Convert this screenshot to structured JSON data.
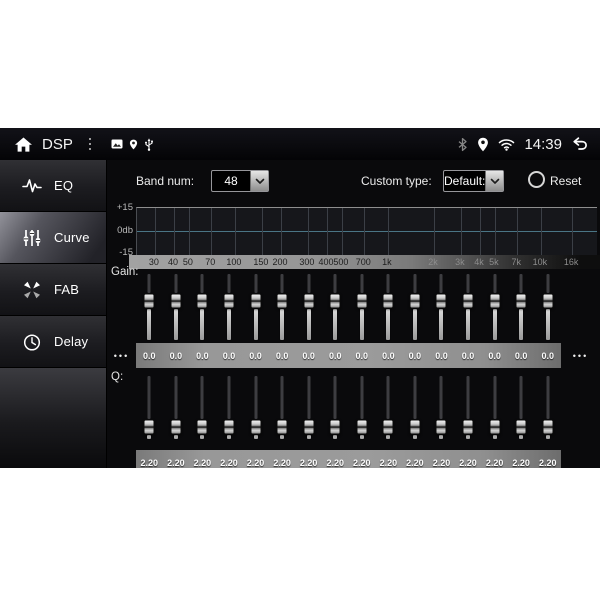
{
  "status_bar": {
    "title": "DSP",
    "time": "14:39",
    "left_icon_names": [
      "home-icon",
      "menu-dots-icon",
      "sd-card-icon",
      "gps-pin-icon",
      "usb-icon"
    ],
    "right_icon_names": [
      "bluetooth-icon",
      "location-pin-icon",
      "wifi-icon",
      "back-icon"
    ]
  },
  "sidebar": {
    "items": [
      {
        "label": "EQ",
        "icon": "eq-wave-icon",
        "active": false
      },
      {
        "label": "Curve",
        "icon": "curve-sliders-icon",
        "active": true
      },
      {
        "label": "FAB",
        "icon": "fab-fade-icon",
        "active": false
      },
      {
        "label": "Delay",
        "icon": "delay-clock-icon",
        "active": false
      }
    ]
  },
  "controls": {
    "band_num_label": "Band num:",
    "band_num_value": "48",
    "custom_type_label": "Custom type:",
    "custom_type_value": "Default:",
    "reset_label": "Reset"
  },
  "graph": {
    "y_axis_labels": [
      "+15",
      "0db",
      "-15"
    ],
    "zero_line_color": "#4a7585",
    "curve_db": 0,
    "frequencies": [
      {
        "hz": 30,
        "label": "30"
      },
      {
        "hz": 40,
        "label": "40"
      },
      {
        "hz": 50,
        "label": "50"
      },
      {
        "hz": 70,
        "label": "70"
      },
      {
        "hz": 100,
        "label": "100"
      },
      {
        "hz": 150,
        "label": "150"
      },
      {
        "hz": 200,
        "label": "200"
      },
      {
        "hz": 300,
        "label": "300"
      },
      {
        "hz": 400,
        "label": "400"
      },
      {
        "hz": 500,
        "label": "500"
      },
      {
        "hz": 700,
        "label": "700"
      },
      {
        "hz": 1000,
        "label": "1k"
      },
      {
        "hz": 2000,
        "label": "2k"
      },
      {
        "hz": 3000,
        "label": "3k"
      },
      {
        "hz": 4000,
        "label": "4k"
      },
      {
        "hz": 5000,
        "label": "5k"
      },
      {
        "hz": 7000,
        "label": "7k"
      },
      {
        "hz": 10000,
        "label": "10k"
      },
      {
        "hz": 16000,
        "label": "16k"
      }
    ]
  },
  "gain": {
    "label": "Gain:",
    "slider_pos": 0.42,
    "more_left": "•••",
    "more_right": "•••",
    "values": [
      "0.0",
      "0.0",
      "0.0",
      "0.0",
      "0.0",
      "0.0",
      "0.0",
      "0.0",
      "0.0",
      "0.0",
      "0.0",
      "0.0",
      "0.0",
      "0.0",
      "0.0",
      "0.0"
    ]
  },
  "q": {
    "label": "Q:",
    "slider_pos": 0.79,
    "values": [
      "2.20",
      "2.20",
      "2.20",
      "2.20",
      "2.20",
      "2.20",
      "2.20",
      "2.20",
      "2.20",
      "2.20",
      "2.20",
      "2.20",
      "2.20",
      "2.20",
      "2.20",
      "2.20"
    ]
  }
}
